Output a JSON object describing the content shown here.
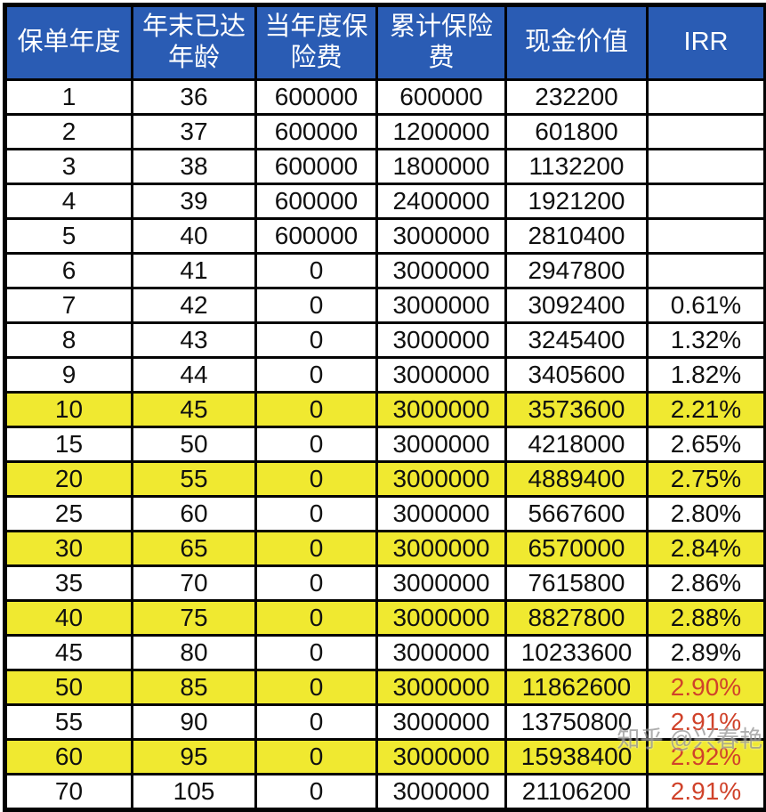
{
  "chart_data": {
    "type": "table",
    "columns": [
      "保单年度",
      "年末已达年龄",
      "当年度保险费",
      "累计保险费",
      "现金价值",
      "IRR"
    ],
    "column_keys": [
      "policy-year",
      "age-at-year-end",
      "annual-premium",
      "cumulative-premium",
      "cash-value",
      "irr"
    ],
    "rows": [
      {
        "cells": [
          "1",
          "36",
          "600000",
          "600000",
          "232200",
          ""
        ],
        "highlight": false,
        "irr_red": false
      },
      {
        "cells": [
          "2",
          "37",
          "600000",
          "1200000",
          "601800",
          ""
        ],
        "highlight": false,
        "irr_red": false
      },
      {
        "cells": [
          "3",
          "38",
          "600000",
          "1800000",
          "1132200",
          ""
        ],
        "highlight": false,
        "irr_red": false
      },
      {
        "cells": [
          "4",
          "39",
          "600000",
          "2400000",
          "1921200",
          ""
        ],
        "highlight": false,
        "irr_red": false
      },
      {
        "cells": [
          "5",
          "40",
          "600000",
          "3000000",
          "2810400",
          ""
        ],
        "highlight": false,
        "irr_red": false
      },
      {
        "cells": [
          "6",
          "41",
          "0",
          "3000000",
          "2947800",
          ""
        ],
        "highlight": false,
        "irr_red": false
      },
      {
        "cells": [
          "7",
          "42",
          "0",
          "3000000",
          "3092400",
          "0.61%"
        ],
        "highlight": false,
        "irr_red": false
      },
      {
        "cells": [
          "8",
          "43",
          "0",
          "3000000",
          "3245400",
          "1.32%"
        ],
        "highlight": false,
        "irr_red": false
      },
      {
        "cells": [
          "9",
          "44",
          "0",
          "3000000",
          "3405600",
          "1.82%"
        ],
        "highlight": false,
        "irr_red": false
      },
      {
        "cells": [
          "10",
          "45",
          "0",
          "3000000",
          "3573600",
          "2.21%"
        ],
        "highlight": true,
        "irr_red": false
      },
      {
        "cells": [
          "15",
          "50",
          "0",
          "3000000",
          "4218000",
          "2.65%"
        ],
        "highlight": false,
        "irr_red": false
      },
      {
        "cells": [
          "20",
          "55",
          "0",
          "3000000",
          "4889400",
          "2.75%"
        ],
        "highlight": true,
        "irr_red": false
      },
      {
        "cells": [
          "25",
          "60",
          "0",
          "3000000",
          "5667600",
          "2.80%"
        ],
        "highlight": false,
        "irr_red": false
      },
      {
        "cells": [
          "30",
          "65",
          "0",
          "3000000",
          "6570000",
          "2.84%"
        ],
        "highlight": true,
        "irr_red": false
      },
      {
        "cells": [
          "35",
          "70",
          "0",
          "3000000",
          "7615800",
          "2.86%"
        ],
        "highlight": false,
        "irr_red": false
      },
      {
        "cells": [
          "40",
          "75",
          "0",
          "3000000",
          "8827800",
          "2.88%"
        ],
        "highlight": true,
        "irr_red": false
      },
      {
        "cells": [
          "45",
          "80",
          "0",
          "3000000",
          "10233600",
          "2.89%"
        ],
        "highlight": false,
        "irr_red": false
      },
      {
        "cells": [
          "50",
          "85",
          "0",
          "3000000",
          "11862600",
          "2.90%"
        ],
        "highlight": true,
        "irr_red": true
      },
      {
        "cells": [
          "55",
          "90",
          "0",
          "3000000",
          "13750800",
          "2.91%"
        ],
        "highlight": false,
        "irr_red": true
      },
      {
        "cells": [
          "60",
          "95",
          "0",
          "3000000",
          "15938400",
          "2.92%"
        ],
        "highlight": true,
        "irr_red": true
      },
      {
        "cells": [
          "70",
          "105",
          "0",
          "3000000",
          "21106200",
          "2.91%"
        ],
        "highlight": false,
        "irr_red": true
      }
    ],
    "highlighted_policy_years": [
      10,
      20,
      30,
      40,
      50,
      60
    ],
    "red_irr_policy_years": [
      50,
      55,
      60,
      70
    ]
  },
  "watermark": {
    "text": "知乎 @兴春艳"
  },
  "colors": {
    "header_bg": "#2A5CB4",
    "header_fg": "#FFFFFF",
    "highlight_bg": "#F0E930",
    "irr_red": "#D0422A",
    "border": "#030303"
  }
}
